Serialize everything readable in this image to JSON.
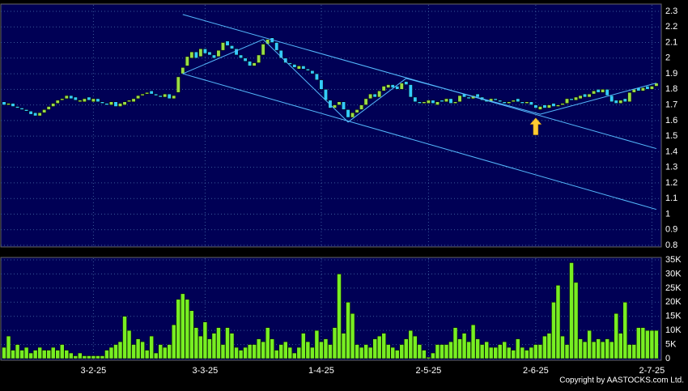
{
  "chart_data": {
    "type": "candlestick",
    "categories": [
      null,
      null,
      null,
      null,
      null,
      null,
      null,
      null,
      null,
      null,
      null,
      null,
      null,
      null,
      null,
      null,
      null,
      null,
      null,
      null,
      "3-2-25",
      null,
      null,
      null,
      null,
      null,
      null,
      null,
      null,
      null,
      null,
      null,
      null,
      null,
      null,
      null,
      null,
      null,
      null,
      null,
      null,
      null,
      null,
      null,
      null,
      "3-3-25",
      null,
      null,
      null,
      null,
      null,
      null,
      null,
      null,
      null,
      null,
      null,
      null,
      null,
      null,
      null,
      null,
      null,
      null,
      null,
      null,
      null,
      null,
      null,
      null,
      null,
      "1-4-25",
      null,
      null,
      null,
      null,
      null,
      null,
      null,
      null,
      null,
      null,
      null,
      null,
      null,
      null,
      null,
      null,
      null,
      null,
      null,
      null,
      null,
      null,
      null,
      "2-5-25",
      null,
      null,
      null,
      null,
      null,
      null,
      null,
      null,
      null,
      null,
      null,
      null,
      null,
      null,
      null,
      null,
      null,
      null,
      null,
      null,
      null,
      null,
      null,
      "2-6-25",
      null,
      null,
      null,
      null,
      null,
      null,
      null,
      null,
      null,
      null,
      null,
      null,
      null,
      null,
      null,
      null,
      null,
      null,
      null,
      null,
      null,
      null,
      null,
      null,
      null,
      "2-7-25",
      null
    ],
    "open": [
      1.72,
      1.7,
      1.71,
      1.69,
      1.68,
      1.67,
      1.66,
      1.65,
      1.63,
      1.65,
      1.67,
      1.69,
      1.71,
      1.73,
      1.74,
      1.76,
      1.75,
      1.72,
      1.72,
      1.75,
      1.72,
      1.74,
      1.72,
      1.71,
      1.7,
      1.72,
      1.69,
      1.7,
      1.72,
      1.72,
      1.74,
      1.76,
      1.77,
      1.79,
      1.77,
      1.76,
      1.75,
      1.77,
      1.74,
      1.78,
      1.9,
      1.95,
      2.0,
      2.04,
      2.01,
      2.06,
      2.04,
      2.02,
      2.01,
      2.05,
      2.11,
      2.08,
      2.06,
      2.02,
      2.0,
      1.98,
      1.95,
      1.97,
      2.02,
      2.09,
      2.13,
      2.1,
      2.05,
      2.0,
      1.97,
      1.96,
      1.93,
      1.95,
      1.93,
      1.92,
      1.9,
      1.86,
      1.8,
      1.73,
      1.68,
      1.7,
      1.72,
      1.67,
      1.62,
      1.65,
      1.67,
      1.7,
      1.74,
      1.77,
      1.75,
      1.79,
      1.81,
      1.83,
      1.82,
      1.8,
      1.85,
      1.83,
      1.75,
      1.72,
      1.71,
      1.71,
      1.73,
      1.7,
      1.73,
      1.72,
      1.74,
      1.71,
      1.72,
      1.77,
      1.75,
      1.74,
      1.77,
      1.75,
      1.73,
      1.72,
      1.74,
      1.73,
      1.72,
      1.71,
      1.72,
      1.74,
      1.72,
      1.71,
      1.72,
      1.7,
      1.67,
      1.7,
      1.68,
      1.71,
      1.69,
      1.7,
      1.71,
      1.74,
      1.73,
      1.74,
      1.77,
      1.75,
      1.77,
      1.8,
      1.78,
      1.8,
      1.76,
      1.73,
      1.71,
      1.74,
      1.72,
      1.78,
      1.81,
      1.79,
      1.82,
      1.8,
      1.82
    ],
    "close": [
      1.7,
      1.71,
      1.69,
      1.68,
      1.67,
      1.66,
      1.64,
      1.63,
      1.65,
      1.67,
      1.69,
      1.71,
      1.73,
      1.74,
      1.76,
      1.74,
      1.73,
      1.73,
      1.74,
      1.73,
      1.74,
      1.72,
      1.71,
      1.7,
      1.72,
      1.69,
      1.71,
      1.72,
      1.73,
      1.74,
      1.76,
      1.77,
      1.78,
      1.77,
      1.76,
      1.75,
      1.77,
      1.74,
      1.76,
      1.88,
      1.94,
      2.01,
      2.04,
      2.0,
      2.06,
      2.03,
      2.02,
      2.0,
      2.05,
      2.1,
      2.08,
      2.06,
      2.02,
      2.0,
      1.98,
      1.95,
      1.97,
      2.02,
      2.09,
      2.12,
      2.1,
      2.05,
      2.0,
      1.97,
      1.96,
      1.94,
      1.95,
      1.93,
      1.92,
      1.9,
      1.86,
      1.8,
      1.73,
      1.68,
      1.7,
      1.72,
      1.67,
      1.62,
      1.65,
      1.67,
      1.7,
      1.74,
      1.77,
      1.75,
      1.79,
      1.82,
      1.83,
      1.81,
      1.8,
      1.84,
      1.83,
      1.75,
      1.72,
      1.71,
      1.72,
      1.73,
      1.71,
      1.72,
      1.72,
      1.74,
      1.71,
      1.72,
      1.76,
      1.75,
      1.74,
      1.76,
      1.75,
      1.73,
      1.72,
      1.74,
      1.73,
      1.72,
      1.71,
      1.72,
      1.73,
      1.72,
      1.71,
      1.72,
      1.7,
      1.68,
      1.69,
      1.68,
      1.7,
      1.69,
      1.7,
      1.71,
      1.74,
      1.73,
      1.75,
      1.76,
      1.75,
      1.77,
      1.79,
      1.78,
      1.8,
      1.76,
      1.72,
      1.71,
      1.73,
      1.72,
      1.78,
      1.8,
      1.79,
      1.81,
      1.8,
      1.82,
      1.84
    ],
    "up_color": "#99dd44",
    "down_color": "#33ccff",
    "ylim": [
      0.8,
      2.3
    ],
    "yticks": [
      2.3,
      2.2,
      2.1,
      2,
      1.9,
      1.8,
      1.7,
      1.6,
      1.5,
      1.4,
      1.3,
      1.2,
      1.1,
      1,
      0.9,
      0.8
    ],
    "trendlines": [
      {
        "color": "#55bbff",
        "points": [
          [
            40,
            2.28
          ],
          [
            146,
            1.42
          ]
        ]
      },
      {
        "color": "#55bbff",
        "points": [
          [
            40,
            1.9
          ],
          [
            146,
            1.03
          ]
        ]
      },
      {
        "color": "#55bbff",
        "points": [
          [
            40,
            1.9
          ],
          [
            58,
            2.12
          ],
          [
            77,
            1.59
          ],
          [
            90,
            1.87
          ],
          [
            120,
            1.64
          ],
          [
            146,
            1.84
          ]
        ]
      }
    ],
    "arrow": {
      "x": 119,
      "y": 1.56,
      "color": "#ffcc33"
    },
    "volume": {
      "color": "#77ee22",
      "values": [
        4000,
        8000,
        3000,
        5000,
        3000,
        4000,
        2000,
        3000,
        4000,
        3000,
        3000,
        4000,
        3000,
        5000,
        3000,
        2000,
        1000,
        2000,
        1000,
        1000,
        1000,
        1000,
        1000,
        3000,
        4000,
        5000,
        6000,
        15000,
        10000,
        5000,
        7000,
        6000,
        3000,
        8000,
        2000,
        5000,
        4000,
        5000,
        12000,
        21000,
        23000,
        21000,
        17000,
        11000,
        8000,
        13000,
        7000,
        9000,
        11000,
        5000,
        11000,
        9000,
        4000,
        3000,
        4000,
        5000,
        5000,
        7000,
        6000,
        11000,
        7000,
        3000,
        5000,
        6000,
        4000,
        2000,
        4000,
        9000,
        6000,
        4000,
        10000,
        6000,
        7000,
        5000,
        11000,
        30000,
        9000,
        20000,
        16000,
        5000,
        4000,
        5000,
        4000,
        7000,
        8000,
        9000,
        5000,
        4000,
        3000,
        5000,
        7000,
        10000,
        8000,
        5000,
        3000,
        500,
        2000,
        5000,
        5000,
        5000,
        6000,
        11000,
        7000,
        9000,
        6000,
        12000,
        7000,
        5000,
        6000,
        4000,
        4000,
        5000,
        6000,
        4000,
        3000,
        7000,
        4000,
        3000,
        4000,
        5000,
        5000,
        8000,
        9000,
        20000,
        26000,
        8000,
        5000,
        34000,
        27000,
        7000,
        6000,
        10000,
        6000,
        7000,
        6000,
        7000,
        6000,
        16000,
        9000,
        20000,
        5000,
        5000,
        11000,
        11000,
        10000,
        10000,
        10000
      ],
      "ylim": [
        0,
        35000
      ],
      "yticks": [
        {
          "value": 35000,
          "label": "35K"
        },
        {
          "value": 30000,
          "label": "30K"
        },
        {
          "value": 25000,
          "label": "25K"
        },
        {
          "value": 20000,
          "label": "20K"
        },
        {
          "value": 15000,
          "label": "15K"
        },
        {
          "value": 10000,
          "label": "10K"
        },
        {
          "value": 5000,
          "label": "5K"
        },
        0
      ]
    },
    "copyright": "Copyright by AASTOCKS.com Ltd."
  }
}
